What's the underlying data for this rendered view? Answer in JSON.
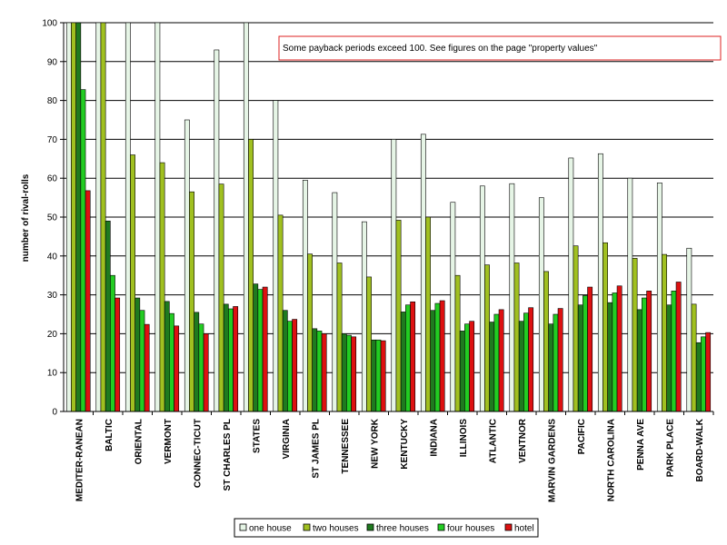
{
  "chart_data": {
    "type": "bar",
    "ylabel": "number of rival-rolls",
    "ylim": [
      0,
      100
    ],
    "yticks": [
      0,
      10,
      20,
      30,
      40,
      50,
      60,
      70,
      80,
      90,
      100
    ],
    "grid": true,
    "legend_position": "bottom",
    "annotation": "Some payback periods exceed 100.  See figures on the page \"property values\"",
    "categories": [
      "MEDITER-RANEAN",
      "BALTIC",
      "ORIENTAL",
      "VERMONT",
      "CONNEC-TICUT",
      "ST CHARLES PL",
      "STATES",
      "VIRGINIA",
      "ST JAMES PL",
      "TENNESSEE",
      "NEW YORK",
      "KENTUCKY",
      "INDIANA",
      "ILLINOIS",
      "ATLANTIC",
      "VENTNOR",
      "MARVIN GARDENS",
      "PACIFIC",
      "NORTH CAROLINA",
      "PENNA AVE",
      "PARK PLACE",
      "BOARD-WALK"
    ],
    "series": [
      {
        "name": "one house",
        "color": "#e6f5e6",
        "values": [
          100,
          100,
          100,
          100,
          75,
          93,
          100,
          80,
          59.5,
          56.3,
          48.8,
          70,
          71.3,
          53.8,
          58,
          58.6,
          55,
          65.2,
          66.3,
          60,
          58.8,
          42
        ]
      },
      {
        "name": "two houses",
        "color": "#a0c020",
        "values": [
          100,
          100,
          66,
          64,
          56.5,
          58.5,
          70,
          50.5,
          40.5,
          38.2,
          34.6,
          49.2,
          50,
          35,
          37.7,
          38.2,
          36,
          42.6,
          43.4,
          39.4,
          40.4,
          27.6
        ]
      },
      {
        "name": "three houses",
        "color": "#1f7a1f",
        "values": [
          100,
          49,
          29.2,
          28.3,
          25.5,
          27.6,
          32.8,
          26,
          21.3,
          20,
          18.4,
          25.6,
          26,
          20.7,
          23,
          23.2,
          22.5,
          27.4,
          28,
          26.2,
          27.4,
          17.7
        ]
      },
      {
        "name": "four houses",
        "color": "#22cc22",
        "values": [
          82.8,
          35,
          26,
          25.2,
          22.5,
          26.4,
          31.4,
          23.2,
          20.7,
          19.6,
          18.4,
          27.4,
          27.8,
          22.5,
          25,
          25.3,
          25,
          29.8,
          30.5,
          29.2,
          31,
          19.2
        ]
      },
      {
        "name": "hotel",
        "color": "#dd1111",
        "values": [
          56.8,
          29.2,
          22.4,
          22,
          20,
          27,
          32,
          23.7,
          20,
          19.2,
          18.2,
          28.2,
          28.5,
          23.2,
          26.2,
          26.7,
          26.5,
          32,
          32.3,
          31,
          33.3,
          20.3
        ]
      }
    ]
  }
}
